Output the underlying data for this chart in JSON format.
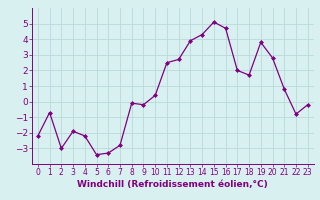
{
  "x": [
    0,
    1,
    2,
    3,
    4,
    5,
    6,
    7,
    8,
    9,
    10,
    11,
    12,
    13,
    14,
    15,
    16,
    17,
    18,
    19,
    20,
    21,
    22,
    23
  ],
  "y": [
    -2.2,
    -0.7,
    -3.0,
    -1.9,
    -2.2,
    -3.4,
    -3.3,
    -2.8,
    -0.1,
    -0.2,
    0.4,
    2.5,
    2.7,
    3.9,
    4.3,
    5.1,
    4.7,
    2.0,
    1.7,
    3.8,
    2.8,
    0.8,
    -0.8,
    -0.2
  ],
  "line_color": "#800080",
  "marker": "D",
  "marker_size": 2.0,
  "linewidth": 0.9,
  "bg_color": "#d8f0f0",
  "grid_color": "#b8dada",
  "xlabel": "Windchill (Refroidissement éolien,°C)",
  "ylim": [
    -4,
    6
  ],
  "xlim": [
    -0.5,
    23.5
  ],
  "yticks": [
    -3,
    -2,
    -1,
    0,
    1,
    2,
    3,
    4,
    5
  ],
  "xticks": [
    0,
    1,
    2,
    3,
    4,
    5,
    6,
    7,
    8,
    9,
    10,
    11,
    12,
    13,
    14,
    15,
    16,
    17,
    18,
    19,
    20,
    21,
    22,
    23
  ],
  "tick_color": "#800080",
  "label_color": "#800080",
  "ytick_fontsize": 6.5,
  "xtick_fontsize": 5.5,
  "xlabel_fontsize": 6.5
}
